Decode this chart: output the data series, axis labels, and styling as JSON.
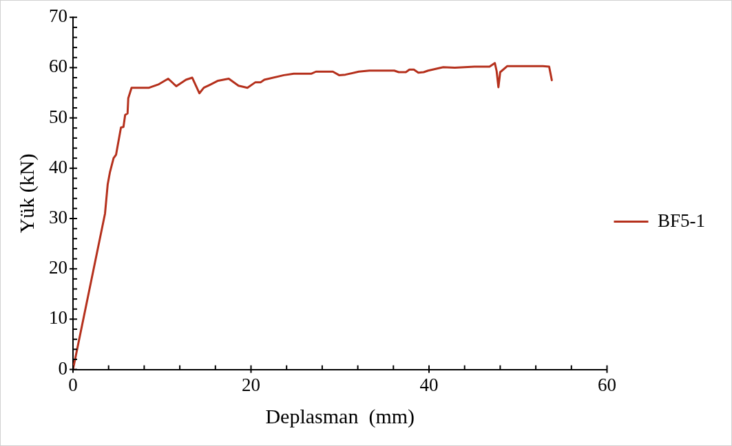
{
  "chart_data": {
    "type": "line",
    "xlabel": "Deplasman  (mm)",
    "ylabel": "Yük (kN)",
    "legend": "right",
    "grid": false,
    "marker": "none",
    "line_style": "solid",
    "xlim": [
      0,
      60
    ],
    "ylim": [
      0,
      70
    ],
    "xticks": [
      0,
      {
        "value": 4,
        "label": null
      },
      {
        "value": 8,
        "label": null
      },
      {
        "value": 12,
        "label": null
      },
      {
        "value": 16,
        "label": null
      },
      20,
      {
        "value": 24,
        "label": null
      },
      {
        "value": 28,
        "label": null
      },
      {
        "value": 32,
        "label": null
      },
      {
        "value": 36,
        "label": null
      },
      40,
      {
        "value": 44,
        "label": null
      },
      {
        "value": 48,
        "label": null
      },
      {
        "value": 52,
        "label": null
      },
      {
        "value": 56,
        "label": null
      },
      60
    ],
    "yticks": [
      0,
      {
        "value": 2,
        "label": null
      },
      {
        "value": 4,
        "label": null
      },
      {
        "value": 6,
        "label": null
      },
      {
        "value": 8,
        "label": null
      },
      10,
      {
        "value": 12,
        "label": null
      },
      {
        "value": 14,
        "label": null
      },
      {
        "value": 16,
        "label": null
      },
      {
        "value": 18,
        "label": null
      },
      20,
      {
        "value": 22,
        "label": null
      },
      {
        "value": 24,
        "label": null
      },
      {
        "value": 26,
        "label": null
      },
      {
        "value": 28,
        "label": null
      },
      30,
      {
        "value": 32,
        "label": null
      },
      {
        "value": 34,
        "label": null
      },
      {
        "value": 36,
        "label": null
      },
      {
        "value": 38,
        "label": null
      },
      40,
      {
        "value": 42,
        "label": null
      },
      {
        "value": 44,
        "label": null
      },
      {
        "value": 46,
        "label": null
      },
      {
        "value": 48,
        "label": null
      },
      50,
      {
        "value": 52,
        "label": null
      },
      {
        "value": 54,
        "label": null
      },
      {
        "value": 56,
        "label": null
      },
      {
        "value": 58,
        "label": null
      },
      60,
      {
        "value": 62,
        "label": null
      },
      {
        "value": 64,
        "label": null
      },
      {
        "value": 66,
        "label": null
      },
      {
        "value": 68,
        "label": null
      },
      70
    ],
    "series": [
      {
        "name": "BF5-1",
        "color": "#b5301c",
        "x": [
          0,
          3.6,
          3.9,
          4.15,
          4.56,
          4.84,
          5.39,
          5.67,
          5.86,
          6.13,
          6.21,
          6.58,
          8.55,
          9.65,
          10.7,
          11.6,
          12.7,
          13.4,
          14.2,
          14.7,
          15.4,
          16.3,
          17.5,
          18.6,
          19.6,
          20.5,
          21.1,
          21.5,
          23.7,
          24.8,
          26.8,
          27.3,
          29.2,
          29.9,
          30.6,
          32.1,
          33.3,
          36.1,
          36.6,
          37.4,
          37.8,
          38.3,
          38.8,
          39.4,
          39.9,
          41.6,
          42.9,
          45.1,
          46.8,
          47.4,
          47.6,
          47.8,
          48.0,
          48.8,
          50.1,
          52.8,
          53.5,
          53.7,
          53.8
        ],
        "values": [
          0,
          31.0,
          36.8,
          39.2,
          42.0,
          42.7,
          48.1,
          48.2,
          50.6,
          50.9,
          53.9,
          56.0,
          56.0,
          56.7,
          57.8,
          56.3,
          57.6,
          58.0,
          54.9,
          56.0,
          56.6,
          57.4,
          57.8,
          56.4,
          56.0,
          57.1,
          57.1,
          57.6,
          58.5,
          58.8,
          58.8,
          59.2,
          59.2,
          58.5,
          58.6,
          59.2,
          59.4,
          59.4,
          59.1,
          59.1,
          59.6,
          59.6,
          59.0,
          59.1,
          59.4,
          60.1,
          60.0,
          60.2,
          60.2,
          60.9,
          59.3,
          56.1,
          59.1,
          60.3,
          60.3,
          60.3,
          60.2,
          58.4,
          57.5
        ]
      }
    ]
  }
}
